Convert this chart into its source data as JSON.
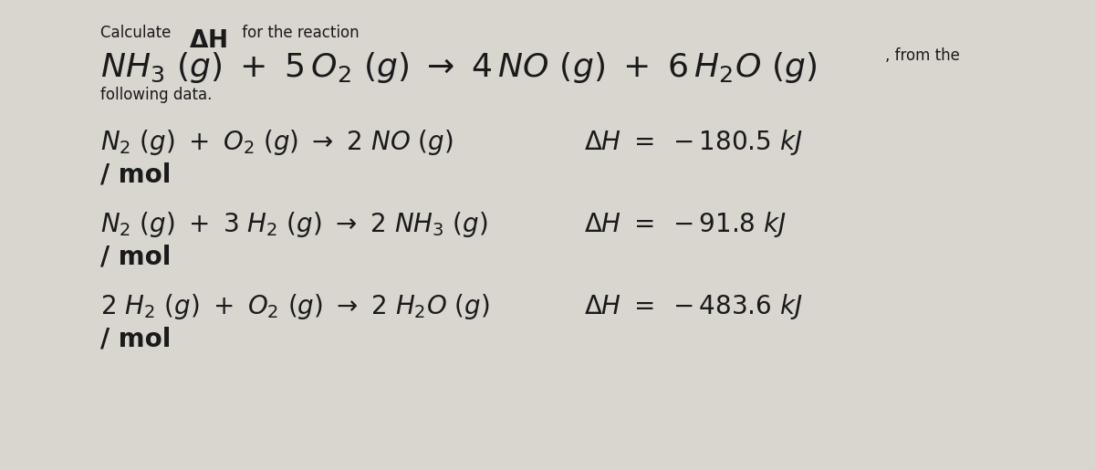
{
  "bg_color": "#d9d5cf",
  "text_color": "#1a1a1a",
  "figsize": [
    12.0,
    5.15
  ],
  "dpi": 100,
  "title_line1_small": "Calculate ",
  "title_line1_dh": "ΔH",
  "title_line1_rest": " for the reaction",
  "main_eq": "NH₃ (g) + 5 O₂ (g)  →  4 NO (g) + 6 H₂O (g)",
  "main_eq_suffix": ", from the",
  "following": "following data.",
  "rx1_eq": "N₂ (g) + O₂ (g)  →  2 NO (g)",
  "rx1_dh": "ΔH = − 180.5 kJ",
  "rx1_mol": "/ mol",
  "rx2_eq": "N₂ (g) + 3 H₂ (g)  →  2 NH₃ (g)",
  "rx2_dh": "ΔH = − 91.8 kJ",
  "rx2_mol": "/ mol",
  "rx3_eq": "2 H₂ (g) + O₂ (g)  →  2 H₂O (g)",
  "rx3_dh": "ΔH = − 483.6 kJ",
  "rx3_mol": "/ mol"
}
